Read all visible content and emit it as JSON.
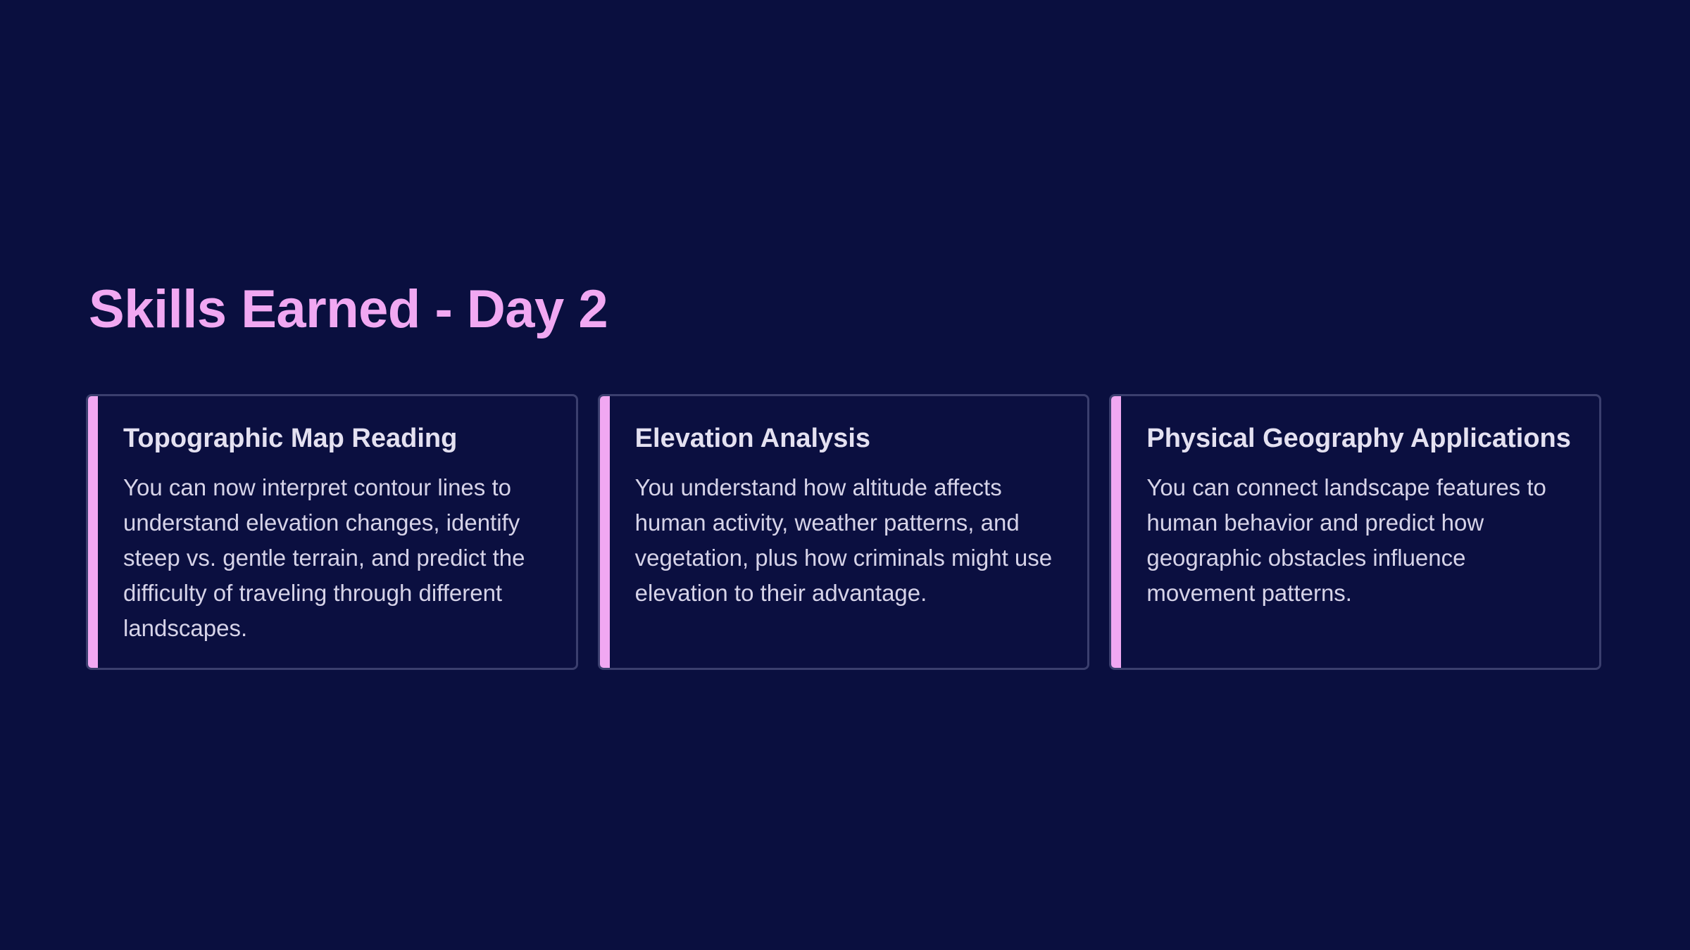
{
  "slide": {
    "title": "Skills Earned - Day 2",
    "accent_color": "#f1a8f2",
    "background_color": "#0a0f3f",
    "cards": [
      {
        "title": "Topographic Map Reading",
        "body": "You can now interpret contour lines to understand elevation changes, identify steep vs. gentle terrain, and predict the difficulty of traveling through different landscapes."
      },
      {
        "title": "Elevation Analysis",
        "body": "You understand how altitude affects human activity, weather patterns, and vegetation, plus how criminals might use elevation to their advantage."
      },
      {
        "title": "Physical Geography Applications",
        "body": "You can connect landscape features to human behavior and predict how geographic obstacles influence movement patterns."
      }
    ]
  }
}
